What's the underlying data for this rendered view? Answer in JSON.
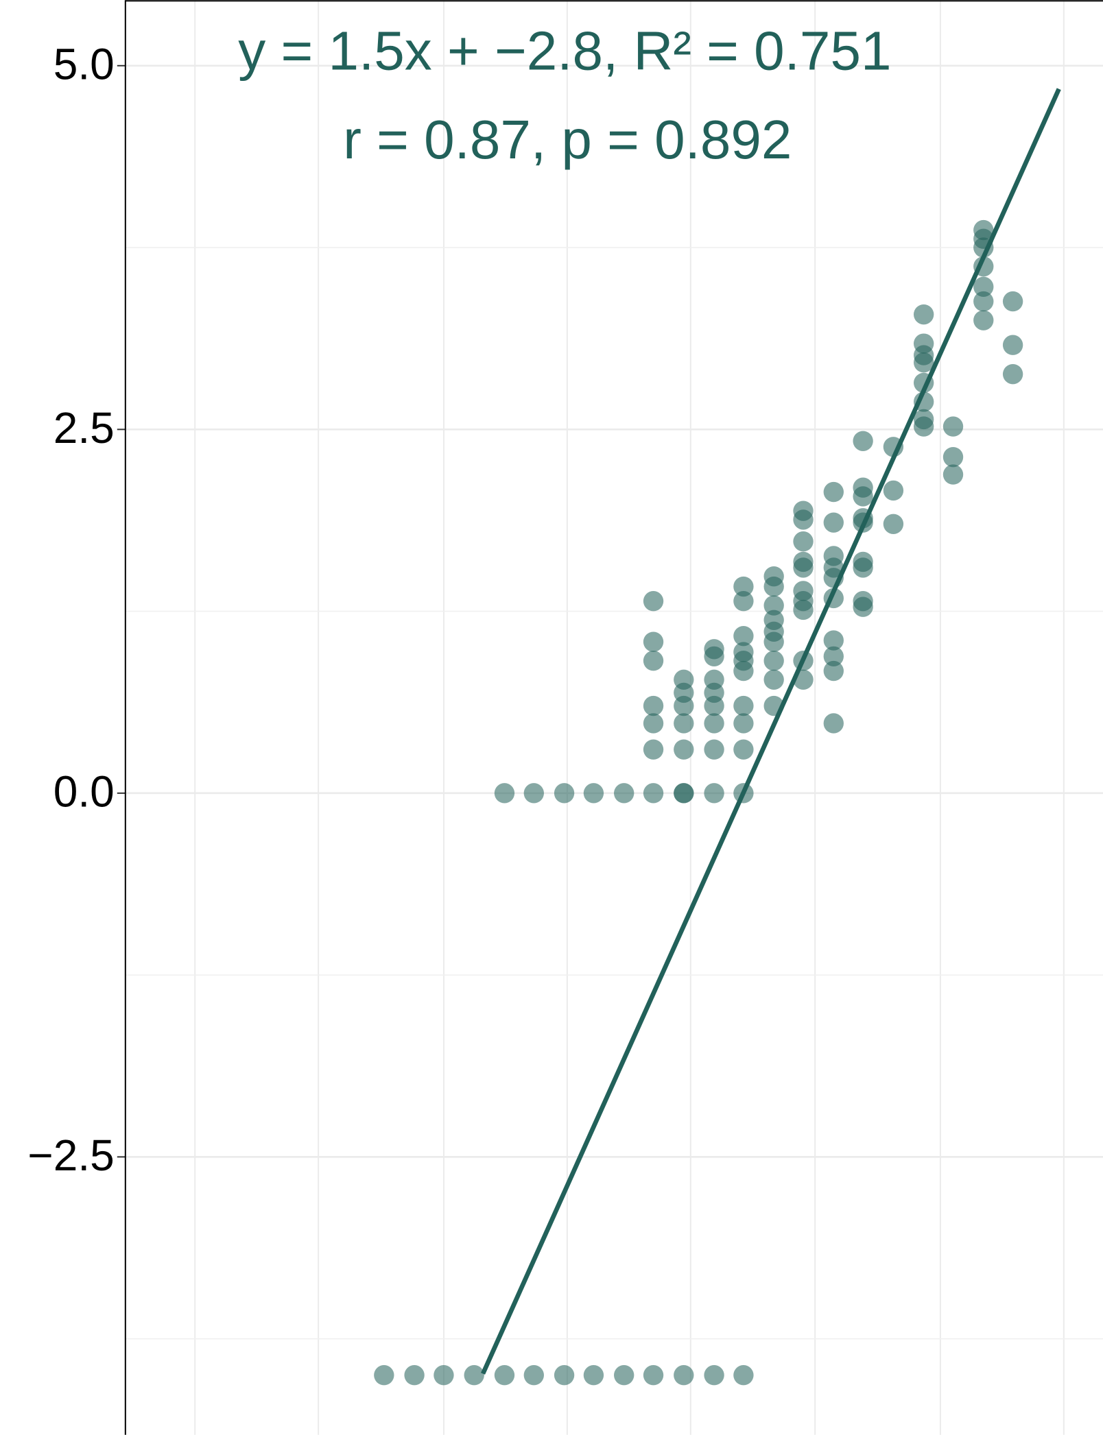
{
  "chart_data": {
    "type": "scatter",
    "annotations": [
      "y = 1.5x + −2.8, R² = 0.751",
      "r = 0.87, p = 0.892"
    ],
    "color": "#22615a",
    "grid": true,
    "xlim": [
      -4.44,
      5.54
    ],
    "xgrid": [
      -3.73,
      -2.47,
      -1.19,
      0.07,
      1.33,
      2.6,
      3.88,
      5.14
    ],
    "ylim": [
      -4.41,
      5.45
    ],
    "yticks": [
      {
        "value": 5,
        "label": "5.0"
      },
      {
        "value": 2.5,
        "label": "2.5"
      },
      {
        "value": 0,
        "label": "0.0"
      },
      {
        "value": -2.5,
        "label": "−2.5"
      }
    ],
    "yminor": [
      3.75,
      1.25,
      -1.25,
      -3.75
    ],
    "x": [
      -1.8,
      -1.49,
      -1.19,
      -0.88,
      -0.57,
      -0.27,
      0.04,
      0.34,
      0.65,
      0.95,
      1.26,
      1.57,
      1.87,
      -0.57,
      -0.27,
      0.04,
      0.34,
      0.65,
      0.95,
      1.26,
      1.57,
      1.87,
      0.95,
      0.95,
      0.95,
      0.95,
      0.95,
      0.95,
      1.26,
      1.26,
      1.26,
      1.26,
      1.26,
      1.26,
      1.57,
      1.57,
      1.57,
      1.57,
      1.57,
      1.57,
      1.57,
      1.87,
      1.87,
      1.87,
      1.87,
      1.87,
      1.87,
      1.87,
      1.87,
      1.87,
      2.18,
      2.18,
      2.18,
      2.18,
      2.18,
      2.18,
      2.18,
      2.18,
      2.18,
      2.48,
      2.48,
      2.48,
      2.48,
      2.48,
      2.48,
      2.48,
      2.48,
      2.48,
      2.48,
      2.79,
      2.79,
      2.79,
      2.79,
      2.79,
      2.79,
      2.79,
      2.79,
      2.79,
      2.79,
      3.09,
      3.09,
      3.09,
      3.09,
      3.09,
      3.09,
      3.09,
      3.09,
      3.09,
      3.4,
      3.4,
      3.4,
      3.71,
      3.71,
      3.71,
      3.71,
      3.71,
      3.71,
      3.71,
      3.71,
      4.01,
      4.01,
      4.01,
      4.32,
      4.32,
      4.32,
      4.32,
      4.32,
      4.32,
      4.32,
      4.62,
      4.62,
      4.62
    ],
    "y": [
      -4,
      -4,
      -4,
      -4,
      -4,
      -4,
      -4,
      -4,
      -4,
      -4,
      -4,
      -4,
      -4,
      0,
      0,
      0,
      0,
      0,
      0,
      0,
      0,
      0,
      1.32,
      1.04,
      0.91,
      0.6,
      0.48,
      0.3,
      0.78,
      0.69,
      0.6,
      0.48,
      0.3,
      0,
      0.99,
      0.94,
      0.78,
      0.69,
      0.6,
      0.48,
      0.3,
      1.42,
      1.32,
      1.08,
      0.97,
      0.91,
      0.84,
      0.6,
      0.48,
      0.3,
      1.49,
      1.42,
      1.29,
      1.19,
      1.11,
      1.04,
      0.91,
      0.78,
      0.6,
      1.94,
      1.88,
      1.73,
      1.59,
      1.55,
      1.39,
      1.32,
      1.26,
      0.91,
      0.78,
      2.07,
      1.86,
      1.63,
      1.55,
      1.48,
      1.34,
      1.05,
      0.94,
      0.84,
      0.48,
      2.42,
      2.1,
      2.04,
      1.89,
      1.86,
      1.59,
      1.55,
      1.32,
      1.28,
      2.38,
      2.08,
      1.85,
      3.29,
      3.09,
      3.01,
      2.96,
      2.82,
      2.69,
      2.57,
      2.52,
      2.52,
      2.31,
      2.19,
      3.87,
      3.81,
      3.75,
      3.62,
      3.48,
      3.38,
      3.25,
      3.38,
      3.08,
      2.88
    ],
    "trend_line": {
      "x": [
        -0.79,
        5.09
      ],
      "y": [
        -3.99,
        4.84
      ]
    }
  }
}
